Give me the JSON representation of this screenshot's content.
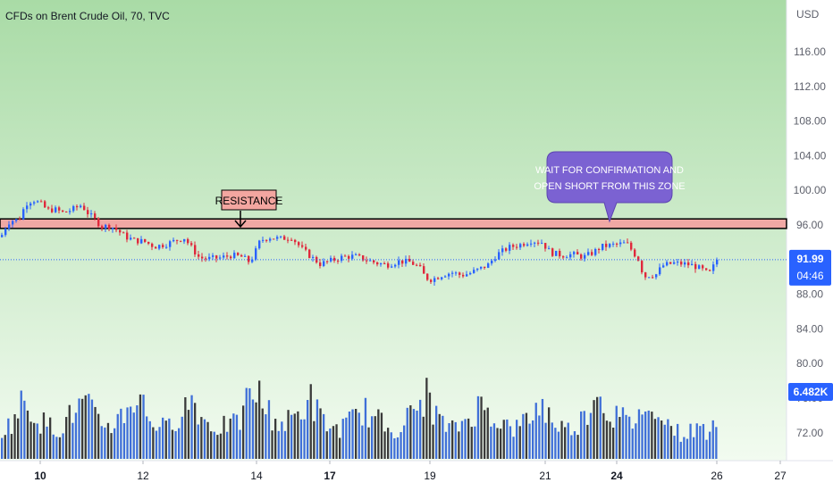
{
  "header": {
    "title": "CFDs on Brent Crude Oil, 70, TVC"
  },
  "colors": {
    "up": "#2962ff",
    "down": "#e0283c",
    "vol_up": "#3f6fd8",
    "vol_down": "#3a3a3a",
    "bg_top": "#a9dba6",
    "bg_bottom": "#f2fbf0",
    "zone_fill": "#f0a8a4",
    "callout": "#7b62d2"
  },
  "chart_data": {
    "type": "candlestick",
    "currency": "USD",
    "ylim": [
      70,
      118
    ],
    "y_ticks": [
      "116.00",
      "112.00",
      "108.00",
      "104.00",
      "100.00",
      "96.00",
      "88.00",
      "84.00",
      "80.00",
      "76.00",
      "72.00"
    ],
    "x_ticks": [
      "10",
      "12",
      "14",
      "17",
      "19",
      "21",
      "24",
      "26",
      "27"
    ],
    "bold_x_ticks": [
      "10",
      "17",
      "24"
    ],
    "last_price": {
      "value": "91.99",
      "countdown": "04:46",
      "level": 91.99
    },
    "last_volume": {
      "value": "6.482K"
    },
    "resistance_zone": {
      "low": 95.6,
      "high": 96.7
    },
    "annotations": {
      "resistance_label": "RESISTANCE",
      "callout_line1": "WAIT FOR CONFIRMATION AND",
      "callout_line2": "OPEN SHORT FROM THIS ZONE"
    },
    "path": [
      [
        0,
        94.6
      ],
      [
        4,
        95.6
      ],
      [
        10,
        96.5
      ],
      [
        20,
        96.6
      ],
      [
        28,
        98.5
      ],
      [
        36,
        98.9
      ],
      [
        45,
        98.4
      ],
      [
        52,
        97.7
      ],
      [
        60,
        97.8
      ],
      [
        70,
        97.4
      ],
      [
        80,
        97.8
      ],
      [
        90,
        98.3
      ],
      [
        97,
        97.4
      ],
      [
        105,
        96.6
      ],
      [
        113,
        95.8
      ],
      [
        122,
        95.9
      ],
      [
        130,
        95.4
      ],
      [
        140,
        94.6
      ],
      [
        150,
        94.2
      ],
      [
        160,
        94.1
      ],
      [
        172,
        93.5
      ],
      [
        185,
        93.8
      ],
      [
        198,
        94.3
      ],
      [
        205,
        94.5
      ],
      [
        213,
        93.4
      ],
      [
        222,
        92.2
      ],
      [
        232,
        92.1
      ],
      [
        245,
        92.2
      ],
      [
        258,
        92.5
      ],
      [
        270,
        92.3
      ],
      [
        277,
        91.8
      ],
      [
        282,
        92.3
      ],
      [
        290,
        94.2
      ],
      [
        300,
        94.6
      ],
      [
        312,
        94.4
      ],
      [
        325,
        94.6
      ],
      [
        337,
        93.2
      ],
      [
        347,
        92.3
      ],
      [
        357,
        91.5
      ],
      [
        370,
        91.9
      ],
      [
        382,
        92.3
      ],
      [
        395,
        92.4
      ],
      [
        408,
        92.0
      ],
      [
        420,
        91.6
      ],
      [
        432,
        91.4
      ],
      [
        445,
        91.8
      ],
      [
        458,
        91.7
      ],
      [
        468,
        91.1
      ],
      [
        475,
        89.9
      ],
      [
        482,
        89.7
      ],
      [
        495,
        90.3
      ],
      [
        505,
        90.5
      ],
      [
        515,
        90.2
      ],
      [
        524,
        90.4
      ],
      [
        535,
        90.9
      ],
      [
        545,
        91.4
      ],
      [
        555,
        92.6
      ],
      [
        568,
        93.4
      ],
      [
        580,
        93.7
      ],
      [
        593,
        94.2
      ],
      [
        605,
        94.0
      ],
      [
        615,
        92.8
      ],
      [
        628,
        92.5
      ],
      [
        640,
        92.6
      ],
      [
        652,
        92.3
      ],
      [
        662,
        92.8
      ],
      [
        672,
        93.5
      ],
      [
        685,
        93.7
      ],
      [
        700,
        93.9
      ],
      [
        709,
        92.6
      ],
      [
        714,
        91.9
      ],
      [
        719,
        90.0
      ],
      [
        725,
        90.2
      ],
      [
        733,
        90.3
      ],
      [
        740,
        91.3
      ],
      [
        752,
        91.6
      ],
      [
        765,
        91.5
      ],
      [
        775,
        91.3
      ],
      [
        785,
        90.8
      ],
      [
        792,
        90.3
      ],
      [
        797,
        91.2
      ],
      [
        800,
        91.99
      ]
    ],
    "volume_profile": [
      [
        0,
        38
      ],
      [
        8,
        45
      ],
      [
        18,
        60
      ],
      [
        25,
        80
      ],
      [
        35,
        65
      ],
      [
        45,
        50
      ],
      [
        55,
        45
      ],
      [
        65,
        40
      ],
      [
        75,
        55
      ],
      [
        85,
        68
      ],
      [
        95,
        75
      ],
      [
        105,
        55
      ],
      [
        115,
        48
      ],
      [
        125,
        45
      ],
      [
        135,
        60
      ],
      [
        145,
        75
      ],
      [
        155,
        88
      ],
      [
        165,
        55
      ],
      [
        175,
        48
      ],
      [
        185,
        40
      ],
      [
        195,
        55
      ],
      [
        205,
        70
      ],
      [
        215,
        82
      ],
      [
        225,
        55
      ],
      [
        235,
        45
      ],
      [
        245,
        42
      ],
      [
        255,
        48
      ],
      [
        265,
        45
      ],
      [
        275,
        78
      ],
      [
        285,
        95
      ],
      [
        295,
        70
      ],
      [
        305,
        55
      ],
      [
        315,
        45
      ],
      [
        325,
        55
      ],
      [
        335,
        62
      ],
      [
        345,
        85
      ],
      [
        355,
        60
      ],
      [
        365,
        45
      ],
      [
        375,
        40
      ],
      [
        385,
        45
      ],
      [
        395,
        55
      ],
      [
        405,
        68
      ],
      [
        415,
        55
      ],
      [
        425,
        50
      ],
      [
        435,
        40
      ],
      [
        445,
        42
      ],
      [
        455,
        55
      ],
      [
        465,
        68
      ],
      [
        475,
        88
      ],
      [
        485,
        65
      ],
      [
        495,
        45
      ],
      [
        505,
        40
      ],
      [
        515,
        48
      ],
      [
        525,
        58
      ],
      [
        535,
        72
      ],
      [
        545,
        65
      ],
      [
        555,
        55
      ],
      [
        565,
        45
      ],
      [
        575,
        40
      ],
      [
        585,
        50
      ],
      [
        595,
        62
      ],
      [
        605,
        75
      ],
      [
        615,
        55
      ],
      [
        625,
        45
      ],
      [
        635,
        40
      ],
      [
        645,
        48
      ],
      [
        655,
        60
      ],
      [
        665,
        100
      ],
      [
        675,
        70
      ],
      [
        685,
        60
      ],
      [
        695,
        55
      ],
      [
        705,
        45
      ],
      [
        715,
        72
      ],
      [
        725,
        55
      ],
      [
        735,
        82
      ],
      [
        745,
        50
      ],
      [
        755,
        38
      ],
      [
        765,
        32
      ],
      [
        775,
        40
      ],
      [
        785,
        42
      ],
      [
        792,
        36
      ],
      [
        797,
        52
      ]
    ]
  }
}
